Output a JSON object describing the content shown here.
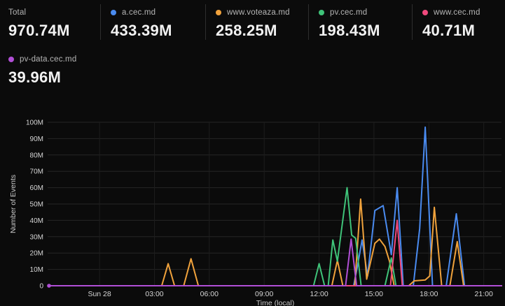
{
  "stats": {
    "items": [
      {
        "label": "Total",
        "value": "970.74M",
        "color": null
      },
      {
        "label": "a.cec.md",
        "value": "433.39M",
        "color": "#4a8bf0"
      },
      {
        "label": "www.voteaza.md",
        "value": "258.25M",
        "color": "#f0a23c"
      },
      {
        "label": "pv.cec.md",
        "value": "198.43M",
        "color": "#3fc379"
      },
      {
        "label": "www.cec.md",
        "value": "40.71M",
        "color": "#f0497d"
      },
      {
        "label": "pv-data.cec.md",
        "value": "39.96M",
        "color": "#b14fd6"
      }
    ]
  },
  "chart_data": {
    "type": "line",
    "title": "",
    "xlabel": "Time (local)",
    "ylabel": "Number of Events",
    "grid": true,
    "legend_position": "top",
    "y_unit": "millions of events",
    "x_unit": "hours from Sun 28 00:00 local",
    "x_domain": [
      -2.76,
      21.97
    ],
    "y_domain": [
      0,
      100
    ],
    "x_ticks": [
      {
        "t": 0,
        "label": "Sun 28"
      },
      {
        "t": 3,
        "label": "03:00"
      },
      {
        "t": 6,
        "label": "06:00"
      },
      {
        "t": 9,
        "label": "09:00"
      },
      {
        "t": 12,
        "label": "12:00"
      },
      {
        "t": 15,
        "label": "15:00"
      },
      {
        "t": 18,
        "label": "18:00"
      },
      {
        "t": 21,
        "label": "21:00"
      }
    ],
    "y_ticks": [
      {
        "v": 0,
        "label": "0"
      },
      {
        "v": 10,
        "label": "10M"
      },
      {
        "v": 20,
        "label": "20M"
      },
      {
        "v": 30,
        "label": "30M"
      },
      {
        "v": 40,
        "label": "40M"
      },
      {
        "v": 50,
        "label": "50M"
      },
      {
        "v": 60,
        "label": "60M"
      },
      {
        "v": 70,
        "label": "70M"
      },
      {
        "v": 80,
        "label": "80M"
      },
      {
        "v": 90,
        "label": "90M"
      },
      {
        "v": 100,
        "label": "100M"
      }
    ],
    "series": [
      {
        "name": "a.cec.md",
        "color": "#4a8bf0",
        "points": [
          [
            -2.76,
            0
          ],
          [
            13.3,
            0
          ],
          [
            13.89,
            0
          ],
          [
            14.1,
            12
          ],
          [
            14.35,
            28
          ],
          [
            14.65,
            6
          ],
          [
            15.05,
            46
          ],
          [
            15.5,
            49
          ],
          [
            15.95,
            19
          ],
          [
            16.27,
            60
          ],
          [
            16.6,
            0
          ],
          [
            17.15,
            0
          ],
          [
            17.5,
            35
          ],
          [
            17.8,
            97
          ],
          [
            18.2,
            0
          ],
          [
            18.95,
            0
          ],
          [
            19.5,
            44
          ],
          [
            19.95,
            0
          ],
          [
            21.97,
            0
          ]
        ]
      },
      {
        "name": "www.voteaza.md",
        "color": "#f0a23c",
        "points": [
          [
            -2.76,
            0
          ],
          [
            3.4,
            0
          ],
          [
            3.75,
            13.5
          ],
          [
            4.1,
            0
          ],
          [
            4.6,
            0
          ],
          [
            5.0,
            16.5
          ],
          [
            5.4,
            0
          ],
          [
            12.7,
            0
          ],
          [
            13.0,
            15.5
          ],
          [
            13.3,
            0
          ],
          [
            13.95,
            0
          ],
          [
            14.27,
            53
          ],
          [
            14.6,
            4
          ],
          [
            15.05,
            26
          ],
          [
            15.3,
            28.5
          ],
          [
            15.6,
            24
          ],
          [
            15.85,
            15
          ],
          [
            16.1,
            0
          ],
          [
            16.9,
            0
          ],
          [
            17.2,
            3
          ],
          [
            17.8,
            3.5
          ],
          [
            18.05,
            6
          ],
          [
            18.3,
            48
          ],
          [
            18.7,
            0
          ],
          [
            19.15,
            0
          ],
          [
            19.55,
            27
          ],
          [
            19.9,
            0
          ],
          [
            21.97,
            0
          ]
        ]
      },
      {
        "name": "pv.cec.md",
        "color": "#3fc379",
        "points": [
          [
            -2.76,
            0
          ],
          [
            11.7,
            0
          ],
          [
            12.0,
            13.5
          ],
          [
            12.3,
            0
          ],
          [
            12.5,
            0
          ],
          [
            12.75,
            28
          ],
          [
            13.0,
            15
          ],
          [
            13.53,
            60
          ],
          [
            13.78,
            31
          ],
          [
            14.0,
            29
          ],
          [
            14.3,
            0
          ],
          [
            15.6,
            0
          ],
          [
            15.95,
            17
          ],
          [
            16.2,
            0
          ],
          [
            21.97,
            0
          ]
        ]
      },
      {
        "name": "www.cec.md",
        "color": "#f0497d",
        "points": [
          [
            -2.76,
            0
          ],
          [
            15.9,
            0
          ],
          [
            16.27,
            40
          ],
          [
            16.55,
            0
          ],
          [
            21.97,
            0
          ]
        ]
      },
      {
        "name": "pv-data.cec.md",
        "color": "#b14fd6",
        "points": [
          [
            -2.76,
            0
          ],
          [
            13.45,
            0
          ],
          [
            13.75,
            28.5
          ],
          [
            14.05,
            0
          ],
          [
            21.97,
            0
          ]
        ]
      }
    ]
  }
}
